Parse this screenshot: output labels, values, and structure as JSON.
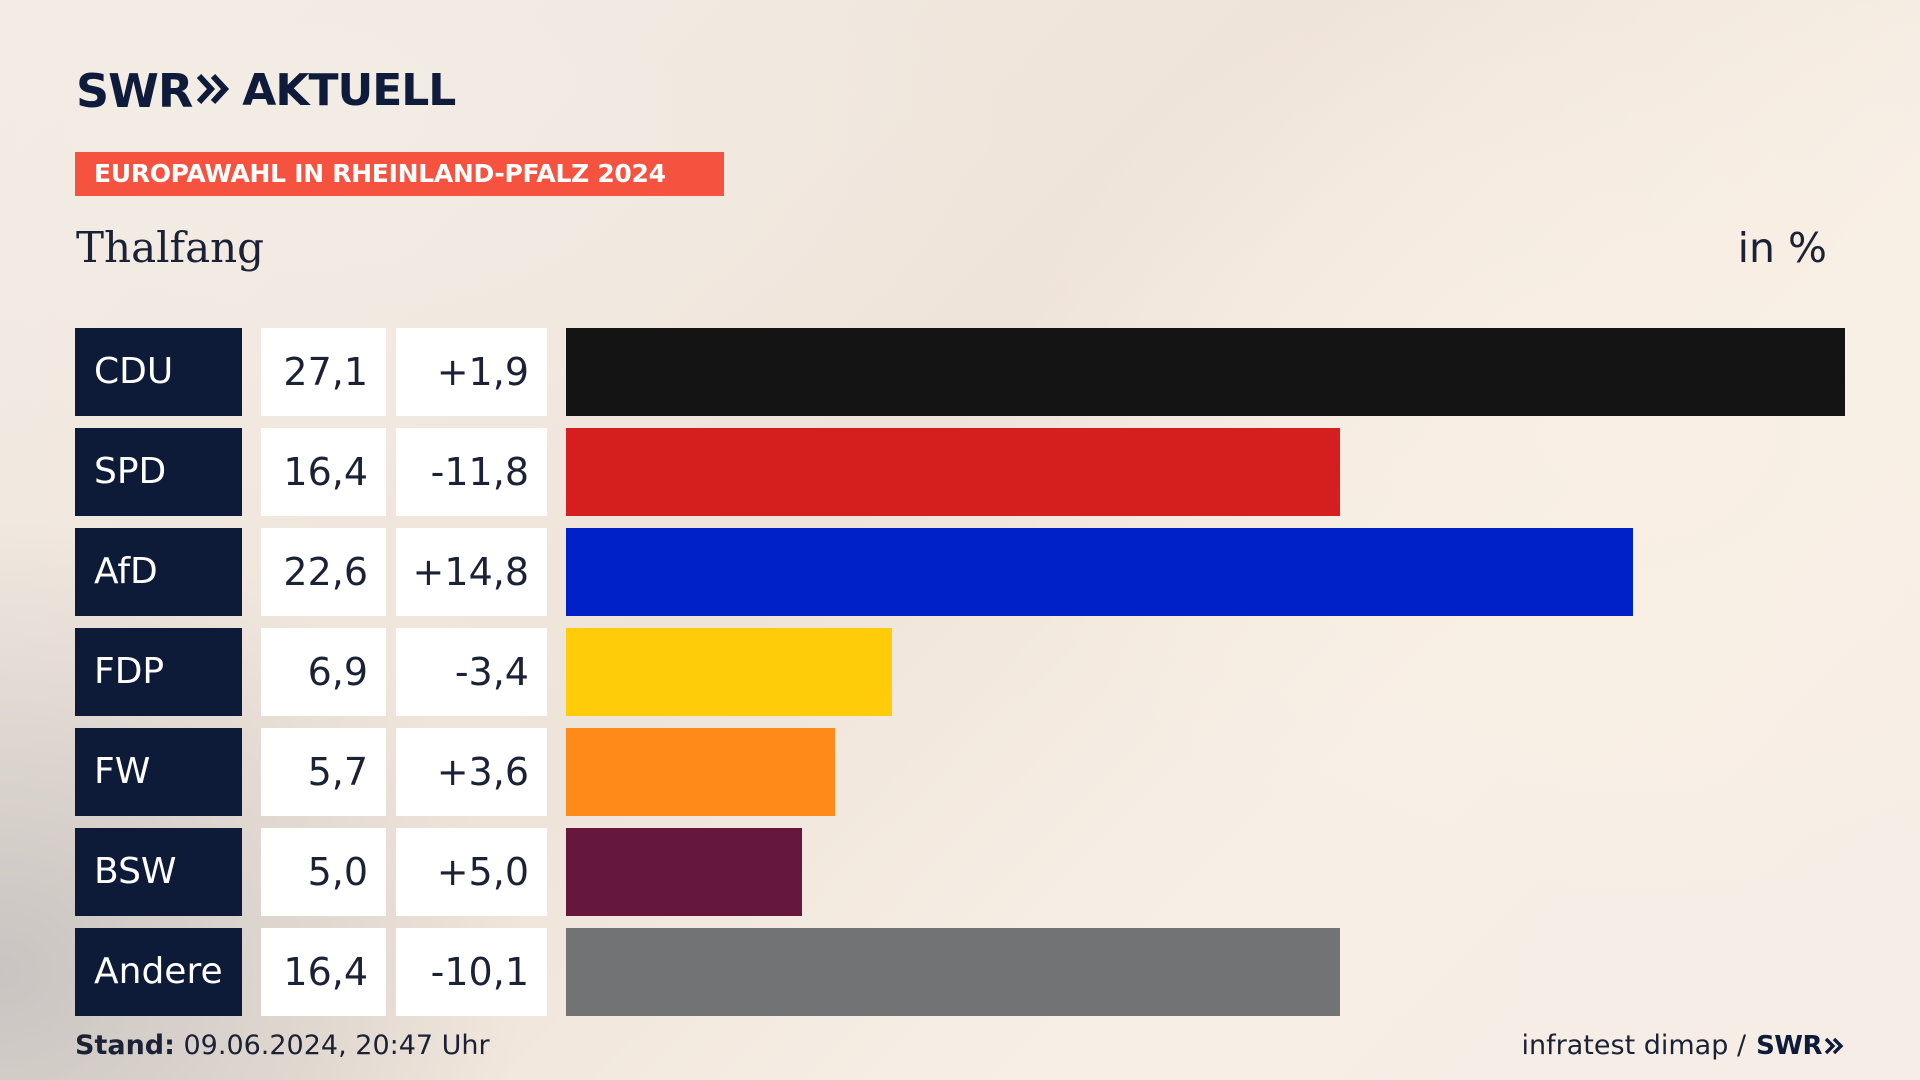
{
  "header": {
    "logo_swr": "SWR",
    "logo_aktuell": "AKTUELL",
    "banner": "EUROPAWAHL IN RHEINLAND-PFALZ 2024",
    "place": "Thalfang",
    "unit": "in %"
  },
  "chart_data": {
    "type": "bar",
    "orientation": "horizontal",
    "title": "EUROPAWAHL IN RHEINLAND-PFALZ 2024",
    "subtitle": "Thalfang",
    "unit": "in %",
    "categories": [
      "CDU",
      "SPD",
      "AfD",
      "FDP",
      "FW",
      "BSW",
      "Andere"
    ],
    "values": [
      27.1,
      16.4,
      22.6,
      6.9,
      5.7,
      5.0,
      16.4
    ],
    "value_labels": [
      "27,1",
      "16,4",
      "22,6",
      "6,9",
      "5,7",
      "5,0",
      "16,4"
    ],
    "change_labels": [
      "+1,9",
      "-11,8",
      "+14,8",
      "-3,4",
      "+3,6",
      "+5,0",
      "-10,1"
    ],
    "changes": [
      1.9,
      -11.8,
      14.8,
      -3.4,
      3.6,
      5.0,
      -10.1
    ],
    "colors": [
      "#141414",
      "#d51e1e",
      "#0021c8",
      "#ffcc0a",
      "#fe8b18",
      "#66173e",
      "#717375"
    ],
    "xlim": [
      0,
      27.1
    ],
    "grid": false,
    "legend": "none"
  },
  "footer": {
    "stand_label": "Stand:",
    "stand_value": " 09.06.2024, 20:47 Uhr",
    "source": "infratest dimap /",
    "source_logo": "SWR"
  }
}
